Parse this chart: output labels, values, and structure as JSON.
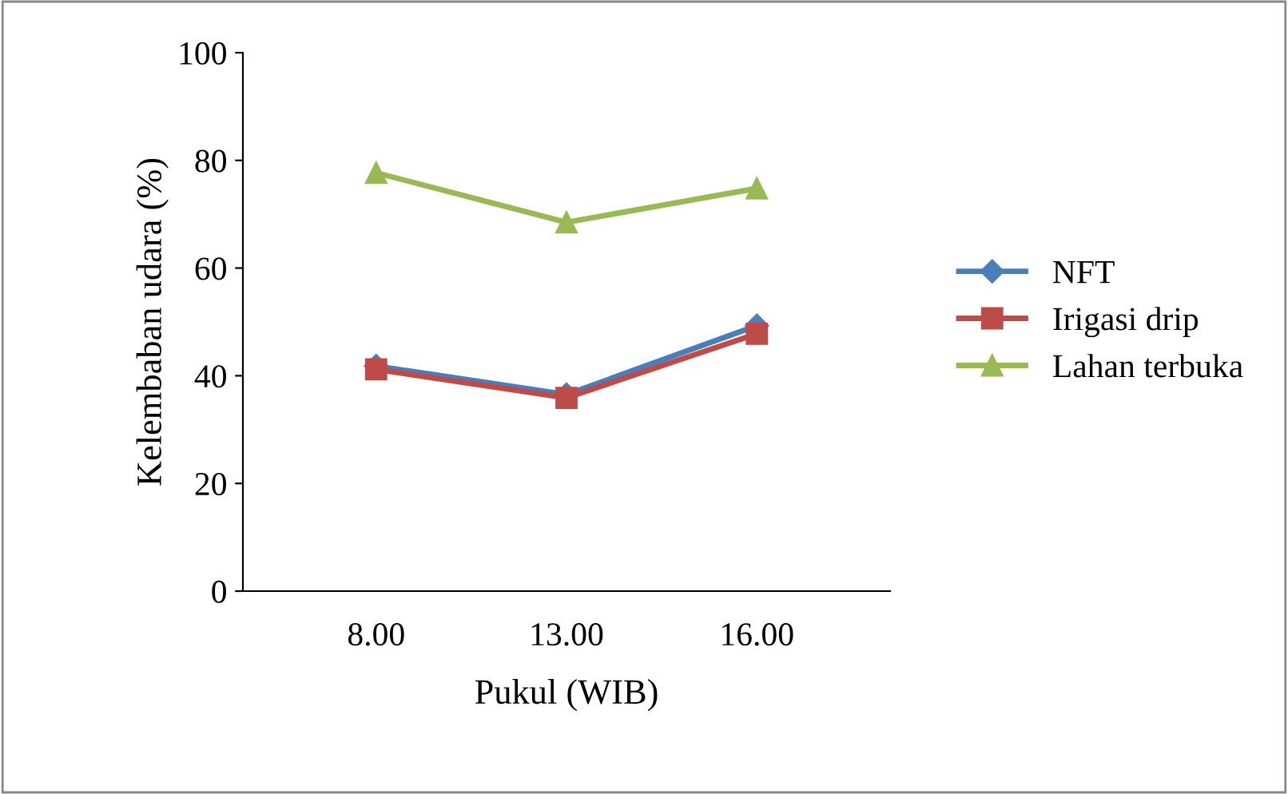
{
  "chart_data": {
    "type": "line",
    "xlabel": "Pukul (WIB)",
    "ylabel": "Kelembaban udara (%)",
    "categories": [
      "8.00",
      "13.00",
      "16.00"
    ],
    "series": [
      {
        "name": "NFT",
        "color": "#4a7ebb",
        "marker": "diamond",
        "values": [
          41.8,
          36.5,
          49.3
        ]
      },
      {
        "name": "Irigasi drip",
        "color": "#be4b48",
        "marker": "square",
        "values": [
          41.2,
          35.9,
          47.8
        ]
      },
      {
        "name": "Lahan terbuka",
        "color": "#98b954",
        "marker": "triangle",
        "values": [
          77.7,
          68.5,
          74.8
        ]
      }
    ],
    "ylim": [
      0,
      100
    ],
    "yticks": [
      0,
      20,
      40,
      60,
      80,
      100
    ],
    "grid": false,
    "legend": "right"
  }
}
